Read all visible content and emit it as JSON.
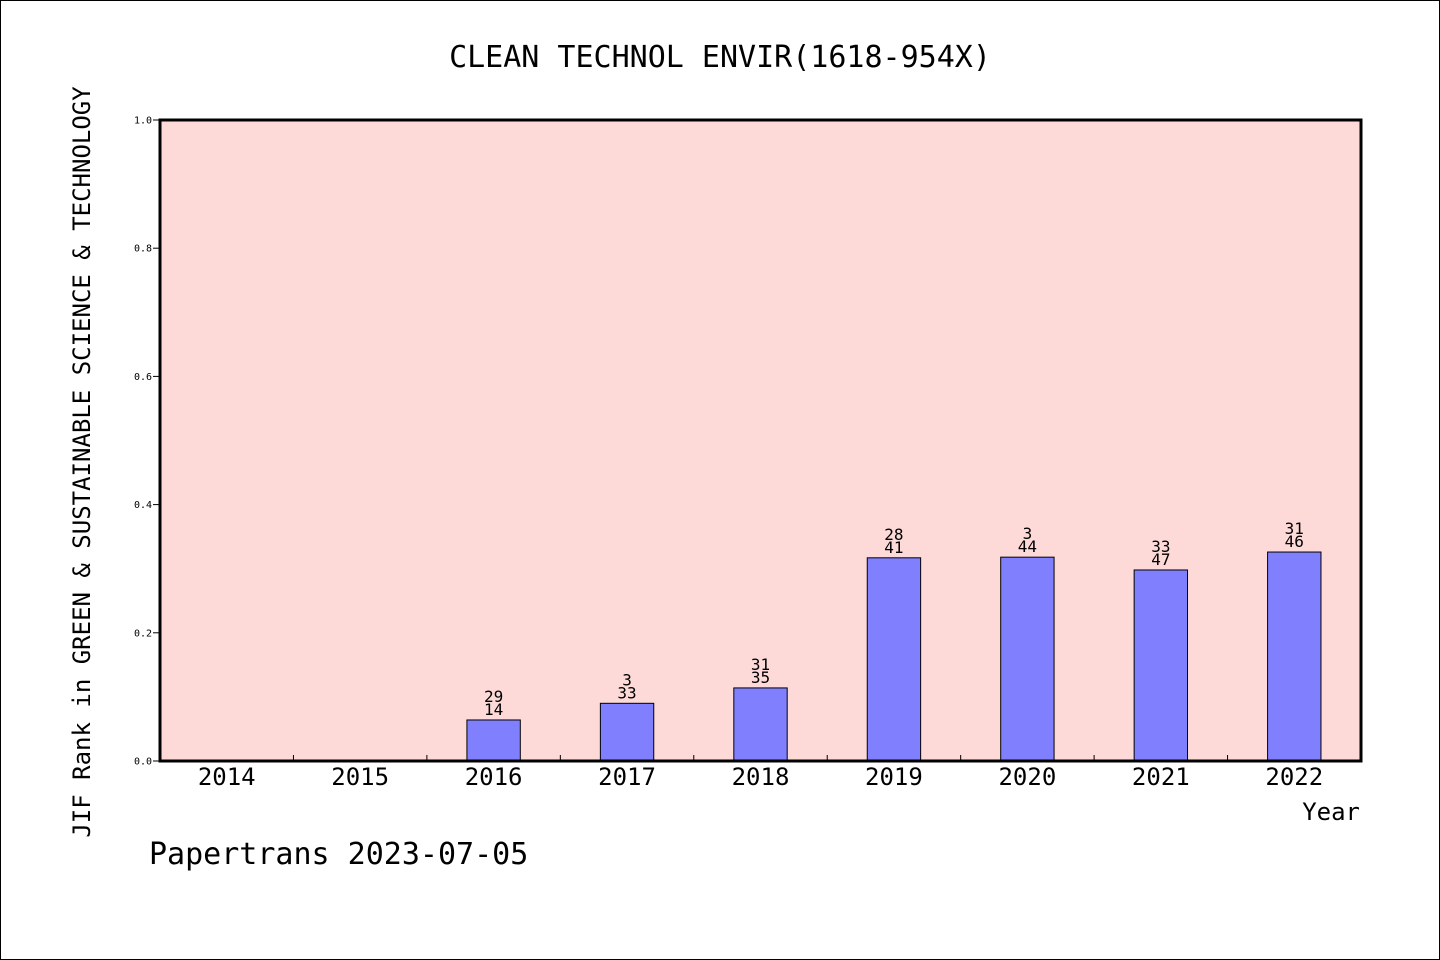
{
  "chart_data": {
    "type": "bar",
    "title": "CLEAN TECHNOL ENVIR(1618-954X)",
    "xlabel": "Year",
    "ylabel": "JIF Rank in GREEN & SUSTAINABLE SCIENCE & TECHNOLOGY",
    "categories": [
      "2014",
      "2015",
      "2016",
      "2017",
      "2018",
      "2019",
      "2020",
      "2021",
      "2022"
    ],
    "values": [
      null,
      null,
      0.064,
      0.09,
      0.114,
      0.317,
      0.318,
      0.298,
      0.326
    ],
    "bar_labels": [
      null,
      null,
      {
        "top": "29",
        "bottom": "14"
      },
      {
        "top": "3",
        "bottom": "33"
      },
      {
        "top": "31",
        "bottom": "35"
      },
      {
        "top": "28",
        "bottom": "41"
      },
      {
        "top": "3",
        "bottom": "44"
      },
      {
        "top": "33",
        "bottom": "47"
      },
      {
        "top": "31",
        "bottom": "46"
      }
    ],
    "ylim": [
      0,
      1.0
    ],
    "yticks": [
      "0.0",
      "0.2",
      "0.4",
      "0.6",
      "0.8",
      "1.0"
    ],
    "plot_background": "#fddad8",
    "bar_color": "#8080ff",
    "grid": false
  },
  "footer": "Papertrans 2023-07-05"
}
